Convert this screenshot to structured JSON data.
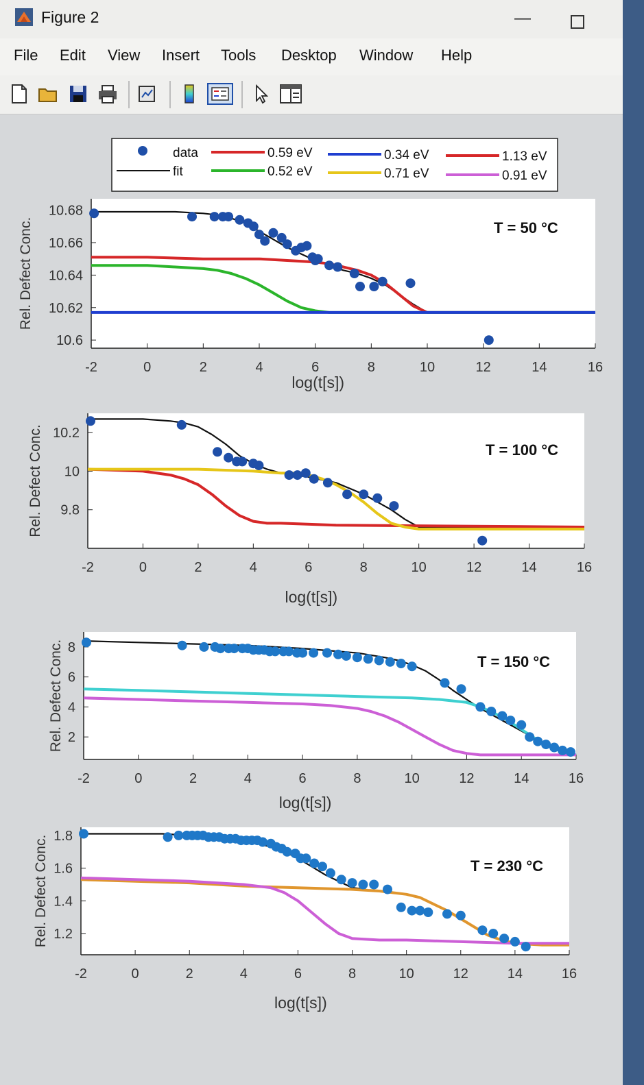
{
  "window": {
    "title": "Figure 2",
    "icon": "matlab-figure-icon",
    "controls": {
      "minimize": "—",
      "close": "×"
    }
  },
  "menubar": [
    "File",
    "Edit",
    "View",
    "Insert",
    "Tools",
    "Desktop",
    "Window",
    "Help"
  ],
  "toolbar": [
    {
      "name": "new-figure-icon"
    },
    {
      "name": "open-file-icon"
    },
    {
      "name": "save-icon"
    },
    {
      "name": "print-icon"
    },
    {
      "name": "link-plot-icon"
    },
    {
      "name": "colorbar-icon"
    },
    {
      "name": "legend-icon"
    },
    {
      "name": "pointer-arrow-icon"
    },
    {
      "name": "property-editor-icon"
    }
  ],
  "colors": {
    "data": "#1f4fa8",
    "data_light": "#1f78c8",
    "fit": "#111111",
    "e059": "#d62728",
    "e052": "#2bb52b",
    "e034": "#1f3ed0",
    "e071": "#e6c619",
    "e113": "#d62728",
    "e091": "#cc5fd6",
    "cyan": "#3fd0d0",
    "orange": "#e0962e"
  },
  "legend": {
    "entries": [
      {
        "label": "data",
        "kind": "marker",
        "color": "#1f4fa8"
      },
      {
        "label": "fit",
        "kind": "line",
        "color": "#111111"
      },
      {
        "label": "0.59 eV",
        "kind": "line",
        "color": "#d62728"
      },
      {
        "label": "0.52 eV",
        "kind": "line",
        "color": "#2bb52b"
      },
      {
        "label": "0.34 eV",
        "kind": "line",
        "color": "#1f3ed0"
      },
      {
        "label": "0.71 eV",
        "kind": "line",
        "color": "#e6c619"
      },
      {
        "label": "1.13 eV",
        "kind": "line",
        "color": "#d62728"
      },
      {
        "label": "0.91 eV",
        "kind": "line",
        "color": "#cc5fd6"
      }
    ]
  },
  "chart_data": [
    {
      "type": "scatter",
      "title": "",
      "annotation": "T = 50 °C",
      "xlabel": "log(t[s])",
      "ylabel": "Rel. Defect Conc.",
      "xlim": [
        -2,
        16
      ],
      "ylim": [
        10.595,
        10.687
      ],
      "xticks": [
        "-2",
        "0",
        "2",
        "4",
        "6",
        "8",
        "10",
        "12",
        "14",
        "16"
      ],
      "yticks": [
        "10.6",
        "10.62",
        "10.64",
        "10.66",
        "10.68"
      ],
      "ytick_values": [
        10.6,
        10.62,
        10.64,
        10.66,
        10.68
      ],
      "data_color": "#1f4fa8",
      "data": {
        "x": [
          -1.9,
          1.6,
          2.4,
          2.7,
          2.9,
          3.3,
          3.6,
          3.8,
          4.0,
          4.2,
          4.5,
          4.8,
          5.0,
          5.3,
          5.5,
          5.7,
          5.9,
          6.0,
          6.1,
          6.5,
          6.8,
          7.4,
          7.6,
          8.1,
          8.4,
          9.4,
          12.2
        ],
        "y": [
          10.678,
          10.676,
          10.676,
          10.676,
          10.676,
          10.674,
          10.672,
          10.67,
          10.665,
          10.661,
          10.666,
          10.663,
          10.659,
          10.655,
          10.657,
          10.658,
          10.651,
          10.649,
          10.65,
          10.646,
          10.645,
          10.641,
          10.633,
          10.633,
          10.636,
          10.635,
          10.6
        ]
      },
      "curves": [
        {
          "name": "fit",
          "color": "#111111",
          "x": [
            -2,
            0,
            1,
            2,
            2.5,
            3,
            3.5,
            4,
            4.5,
            5,
            5.5,
            6,
            6.5,
            7,
            7.5,
            8,
            8.5,
            9,
            9.5,
            10,
            12,
            16
          ],
          "y": [
            10.679,
            10.679,
            10.679,
            10.678,
            10.677,
            10.675,
            10.672,
            10.667,
            10.662,
            10.657,
            10.653,
            10.649,
            10.646,
            10.643,
            10.641,
            10.638,
            10.634,
            10.628,
            10.622,
            10.617,
            10.617,
            10.617
          ]
        },
        {
          "name": "0.59 eV",
          "color": "#d62728",
          "x": [
            -2,
            0,
            2,
            4,
            5,
            6,
            6.5,
            7,
            7.5,
            8,
            8.5,
            9,
            9.5,
            10,
            12,
            16
          ],
          "y": [
            10.651,
            10.651,
            10.65,
            10.65,
            10.649,
            10.648,
            10.647,
            10.645,
            10.643,
            10.64,
            10.635,
            10.628,
            10.621,
            10.617,
            10.617,
            10.617
          ]
        },
        {
          "name": "0.52 eV",
          "color": "#2bb52b",
          "x": [
            -2,
            0,
            1,
            2,
            2.5,
            3,
            3.5,
            4,
            4.5,
            5,
            5.5,
            6,
            6.5,
            8,
            16
          ],
          "y": [
            10.646,
            10.646,
            10.645,
            10.644,
            10.643,
            10.641,
            10.638,
            10.634,
            10.629,
            10.624,
            10.62,
            10.618,
            10.617,
            10.617,
            10.617
          ]
        },
        {
          "name": "0.34 eV",
          "color": "#1f3ed0",
          "x": [
            -2,
            0,
            2,
            6,
            10,
            16
          ],
          "y": [
            10.617,
            10.617,
            10.617,
            10.617,
            10.617,
            10.617
          ]
        }
      ]
    },
    {
      "type": "scatter",
      "title": "",
      "annotation": "T = 100 °C",
      "xlabel": "log(t[s])",
      "ylabel": "Rel. Defect Conc.",
      "xlim": [
        -2,
        16
      ],
      "ylim": [
        9.6,
        10.3
      ],
      "xticks": [
        "-2",
        "0",
        "2",
        "4",
        "6",
        "8",
        "10",
        "12",
        "14",
        "16"
      ],
      "yticks": [
        "9.8",
        "10",
        "10.2"
      ],
      "ytick_values": [
        9.8,
        10.0,
        10.2
      ],
      "data_color": "#1f4fa8",
      "data": {
        "x": [
          -1.9,
          1.4,
          2.7,
          3.1,
          3.4,
          3.6,
          4.0,
          4.2,
          5.3,
          5.6,
          5.9,
          6.2,
          6.7,
          7.4,
          8.0,
          8.5,
          9.1,
          12.3
        ],
        "y": [
          10.26,
          10.24,
          10.1,
          10.07,
          10.05,
          10.05,
          10.04,
          10.03,
          9.98,
          9.98,
          9.99,
          9.96,
          9.94,
          9.88,
          9.88,
          9.86,
          9.82,
          9.64
        ]
      },
      "curves": [
        {
          "name": "fit",
          "color": "#111111",
          "x": [
            -2,
            0,
            1,
            1.5,
            2,
            2.5,
            3,
            3.5,
            4,
            4.5,
            5,
            6,
            7,
            8,
            9,
            9.5,
            10,
            12,
            16
          ],
          "y": [
            10.27,
            10.27,
            10.26,
            10.25,
            10.23,
            10.19,
            10.14,
            10.08,
            10.04,
            10.01,
            9.99,
            9.97,
            9.94,
            9.88,
            9.8,
            9.75,
            9.71,
            9.71,
            9.71
          ]
        },
        {
          "name": "0.59 eV",
          "color": "#d62728",
          "x": [
            -2,
            0,
            1,
            1.5,
            2,
            2.5,
            3,
            3.5,
            4,
            4.5,
            5,
            7,
            16
          ],
          "y": [
            10.01,
            10.0,
            9.98,
            9.96,
            9.93,
            9.88,
            9.82,
            9.77,
            9.74,
            9.73,
            9.73,
            9.72,
            9.71
          ]
        },
        {
          "name": "0.71 eV",
          "color": "#e6c619",
          "x": [
            -2,
            0,
            2,
            4,
            5,
            5.5,
            6,
            6.5,
            7,
            7.5,
            8,
            8.5,
            9,
            9.5,
            10,
            12,
            16
          ],
          "y": [
            10.01,
            10.01,
            10.01,
            10.0,
            9.99,
            9.99,
            9.98,
            9.96,
            9.93,
            9.89,
            9.84,
            9.78,
            9.73,
            9.71,
            9.7,
            9.7,
            9.7
          ]
        }
      ]
    },
    {
      "type": "scatter",
      "title": "",
      "annotation": "T = 150 °C",
      "xlabel": "log(t[s])",
      "ylabel": "Rel. Defect Conc.",
      "xlim": [
        -2,
        16
      ],
      "ylim": [
        0.5,
        9.0
      ],
      "xticks": [
        "-2",
        "0",
        "2",
        "4",
        "6",
        "8",
        "10",
        "12",
        "14",
        "16"
      ],
      "yticks": [
        "2",
        "4",
        "6",
        "8"
      ],
      "ytick_values": [
        2,
        4,
        6,
        8
      ],
      "data_color": "#1f78c8",
      "data": {
        "x": [
          -1.9,
          1.6,
          2.4,
          2.8,
          3.0,
          3.3,
          3.5,
          3.8,
          4.0,
          4.2,
          4.4,
          4.6,
          4.8,
          5.0,
          5.3,
          5.5,
          5.8,
          6.0,
          6.4,
          6.9,
          7.3,
          7.6,
          8.0,
          8.4,
          8.8,
          9.2,
          9.6,
          10.0,
          11.2,
          11.8,
          12.5,
          12.9,
          13.3,
          13.6,
          14.0,
          14.3,
          14.6,
          14.9,
          15.2,
          15.5,
          15.8
        ],
        "y": [
          8.3,
          8.1,
          8.0,
          8.0,
          7.9,
          7.9,
          7.9,
          7.9,
          7.9,
          7.8,
          7.8,
          7.8,
          7.7,
          7.7,
          7.7,
          7.7,
          7.6,
          7.6,
          7.6,
          7.6,
          7.5,
          7.4,
          7.3,
          7.2,
          7.1,
          7.0,
          6.9,
          6.7,
          5.6,
          5.2,
          4.0,
          3.7,
          3.4,
          3.1,
          2.8,
          2.0,
          1.7,
          1.5,
          1.3,
          1.1,
          1.0
        ]
      },
      "curves": [
        {
          "name": "fit",
          "color": "#111111",
          "x": [
            -2,
            0,
            2,
            4,
            6,
            8,
            9,
            9.5,
            10,
            10.5,
            11,
            11.5,
            12,
            12.5,
            13,
            13.5,
            14,
            14.5,
            15,
            15.5,
            16
          ],
          "y": [
            8.4,
            8.3,
            8.2,
            8.1,
            7.9,
            7.6,
            7.3,
            7.1,
            6.8,
            6.4,
            5.8,
            5.1,
            4.5,
            3.9,
            3.4,
            2.9,
            2.4,
            1.9,
            1.4,
            1.0,
            0.8
          ]
        },
        {
          "name": "cyan",
          "color": "#3fd0d0",
          "x": [
            -2,
            0,
            2,
            4,
            6,
            8,
            10,
            11,
            12,
            12.5,
            13,
            13.5,
            14,
            14.5,
            15,
            15.5,
            16
          ],
          "y": [
            5.2,
            5.1,
            5.0,
            4.9,
            4.8,
            4.7,
            4.6,
            4.5,
            4.3,
            4.0,
            3.6,
            3.1,
            2.5,
            1.9,
            1.4,
            1.0,
            0.8
          ]
        },
        {
          "name": "0.91 eV",
          "color": "#cc5fd6",
          "x": [
            -2,
            0,
            2,
            4,
            6,
            7,
            8,
            8.5,
            9,
            9.5,
            10,
            10.5,
            11,
            11.5,
            12,
            12.5,
            13,
            16
          ],
          "y": [
            4.6,
            4.5,
            4.4,
            4.3,
            4.2,
            4.1,
            3.9,
            3.7,
            3.4,
            3.0,
            2.5,
            2.0,
            1.5,
            1.1,
            0.9,
            0.8,
            0.8,
            0.8
          ]
        }
      ]
    },
    {
      "type": "scatter",
      "title": "",
      "annotation": "T = 230 °C",
      "xlabel": "log(t[s])",
      "ylabel": "Rel. Defect Conc.",
      "xlim": [
        -2,
        16
      ],
      "ylim": [
        1.07,
        1.85
      ],
      "xticks": [
        "-2",
        "0",
        "2",
        "4",
        "6",
        "8",
        "10",
        "12",
        "14",
        "16"
      ],
      "yticks": [
        "1.2",
        "1.4",
        "1.6",
        "1.8"
      ],
      "ytick_values": [
        1.2,
        1.4,
        1.6,
        1.8
      ],
      "data_color": "#1f78c8",
      "data": {
        "x": [
          -1.9,
          1.2,
          1.6,
          1.9,
          2.1,
          2.3,
          2.5,
          2.7,
          2.9,
          3.1,
          3.3,
          3.5,
          3.7,
          3.9,
          4.1,
          4.3,
          4.5,
          4.7,
          5.0,
          5.2,
          5.4,
          5.6,
          5.9,
          6.1,
          6.3,
          6.6,
          6.9,
          7.2,
          7.6,
          8.0,
          8.4,
          8.8,
          9.3,
          9.8,
          10.2,
          10.5,
          10.8,
          11.5,
          12.0,
          12.8,
          13.2,
          13.6,
          14.0,
          14.4
        ],
        "y": [
          1.81,
          1.79,
          1.8,
          1.8,
          1.8,
          1.8,
          1.8,
          1.79,
          1.79,
          1.79,
          1.78,
          1.78,
          1.78,
          1.77,
          1.77,
          1.77,
          1.77,
          1.76,
          1.75,
          1.73,
          1.72,
          1.7,
          1.69,
          1.66,
          1.66,
          1.63,
          1.61,
          1.57,
          1.53,
          1.51,
          1.5,
          1.5,
          1.47,
          1.36,
          1.34,
          1.34,
          1.33,
          1.32,
          1.31,
          1.22,
          1.2,
          1.17,
          1.15,
          1.12
        ]
      },
      "curves": [
        {
          "name": "fit",
          "color": "#111111",
          "x": [
            -2,
            0,
            1,
            2,
            3,
            4,
            4.5,
            5,
            5.5,
            6,
            6.5,
            7,
            7.5,
            8,
            8.5
          ],
          "y": [
            1.81,
            1.81,
            1.81,
            1.8,
            1.79,
            1.77,
            1.75,
            1.73,
            1.7,
            1.66,
            1.61,
            1.56,
            1.52,
            1.48,
            1.47
          ]
        },
        {
          "name": "orange",
          "color": "#e0962e",
          "x": [
            -2,
            0,
            2,
            4,
            6,
            8,
            9,
            10,
            10.5,
            11,
            11.5,
            12,
            12.5,
            13,
            13.5,
            14,
            15,
            16
          ],
          "y": [
            1.53,
            1.52,
            1.51,
            1.49,
            1.48,
            1.47,
            1.46,
            1.44,
            1.42,
            1.38,
            1.34,
            1.29,
            1.24,
            1.19,
            1.16,
            1.14,
            1.13,
            1.13
          ]
        },
        {
          "name": "0.91 eV",
          "color": "#cc5fd6",
          "x": [
            -2,
            0,
            2,
            3,
            4,
            4.5,
            5,
            5.5,
            6,
            6.5,
            7,
            7.5,
            8,
            9,
            10,
            12,
            14,
            16
          ],
          "y": [
            1.54,
            1.53,
            1.52,
            1.51,
            1.5,
            1.49,
            1.48,
            1.45,
            1.4,
            1.33,
            1.26,
            1.2,
            1.17,
            1.16,
            1.16,
            1.15,
            1.14,
            1.14
          ]
        }
      ]
    }
  ]
}
